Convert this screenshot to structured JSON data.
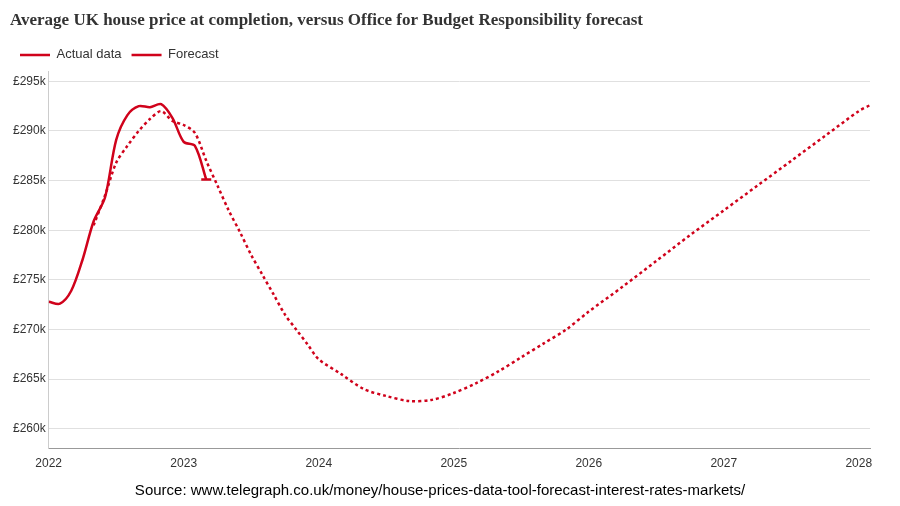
{
  "chart_data": {
    "type": "line",
    "title": "Average UK house price at completion, versus Office for Budget Responsibility forecast",
    "source": "Source: www.telegraph.co.uk/money/house-prices-data-tool-forecast-interest-rates-markets/",
    "legend": "top-left",
    "grid": "y",
    "xlim": [
      2022,
      2028.083
    ],
    "xticks": [
      2022,
      2023,
      2024,
      2025,
      2026,
      2027,
      2028
    ],
    "ylim": [
      258000,
      296000
    ],
    "yticks": [
      {
        "value": 260000,
        "label": "£260k"
      },
      {
        "value": 265000,
        "label": "£265k"
      },
      {
        "value": 270000,
        "label": "£270k"
      },
      {
        "value": 275000,
        "label": "£275k"
      },
      {
        "value": 280000,
        "label": "£280k"
      },
      {
        "value": 285000,
        "label": "£285k"
      },
      {
        "value": 290000,
        "label": "£290k"
      },
      {
        "value": 295000,
        "label": "£295k"
      }
    ],
    "series": [
      {
        "name": "Actual data",
        "color": "#d0021b",
        "line_style": "solid",
        "marker": "end",
        "x": [
          2022.0,
          2022.083,
          2022.167,
          2022.25,
          2022.333,
          2022.417,
          2022.5,
          2022.583,
          2022.667,
          2022.75,
          2022.833,
          2022.917,
          2023.0,
          2023.083,
          2023.167
        ],
        "values": [
          272800,
          272600,
          273900,
          277000,
          280900,
          283300,
          289100,
          291600,
          292500,
          292400,
          292700,
          291300,
          288900,
          288500,
          285100
        ]
      },
      {
        "name": "Forecast",
        "color": "#d0021b",
        "line_style": "dotted",
        "marker": "none",
        "x": [
          2022.333,
          2022.417,
          2022.5,
          2022.583,
          2022.667,
          2022.75,
          2022.833,
          2022.917,
          2023.0,
          2023.083,
          2023.167,
          2023.25,
          2023.333,
          2023.417,
          2023.5,
          2023.583,
          2023.667,
          2023.75,
          2023.833,
          2023.917,
          2024.0,
          2024.167,
          2024.333,
          2024.5,
          2024.667,
          2024.833,
          2025.0,
          2025.167,
          2025.333,
          2025.5,
          2025.667,
          2025.833,
          2026.0,
          2026.25,
          2026.5,
          2026.75,
          2027.0,
          2027.25,
          2027.5,
          2027.75,
          2028.0,
          2028.083
        ],
        "values": [
          280500,
          283500,
          286800,
          288500,
          290000,
          291200,
          292000,
          291000,
          290600,
          289800,
          287000,
          284500,
          282000,
          279800,
          277500,
          275500,
          273500,
          271500,
          270000,
          268500,
          267000,
          265500,
          264000,
          263300,
          262800,
          262900,
          263600,
          264600,
          265800,
          267200,
          268600,
          270000,
          271800,
          274300,
          276900,
          279500,
          282000,
          284500,
          287000,
          289500,
          292000,
          292600
        ]
      }
    ]
  }
}
